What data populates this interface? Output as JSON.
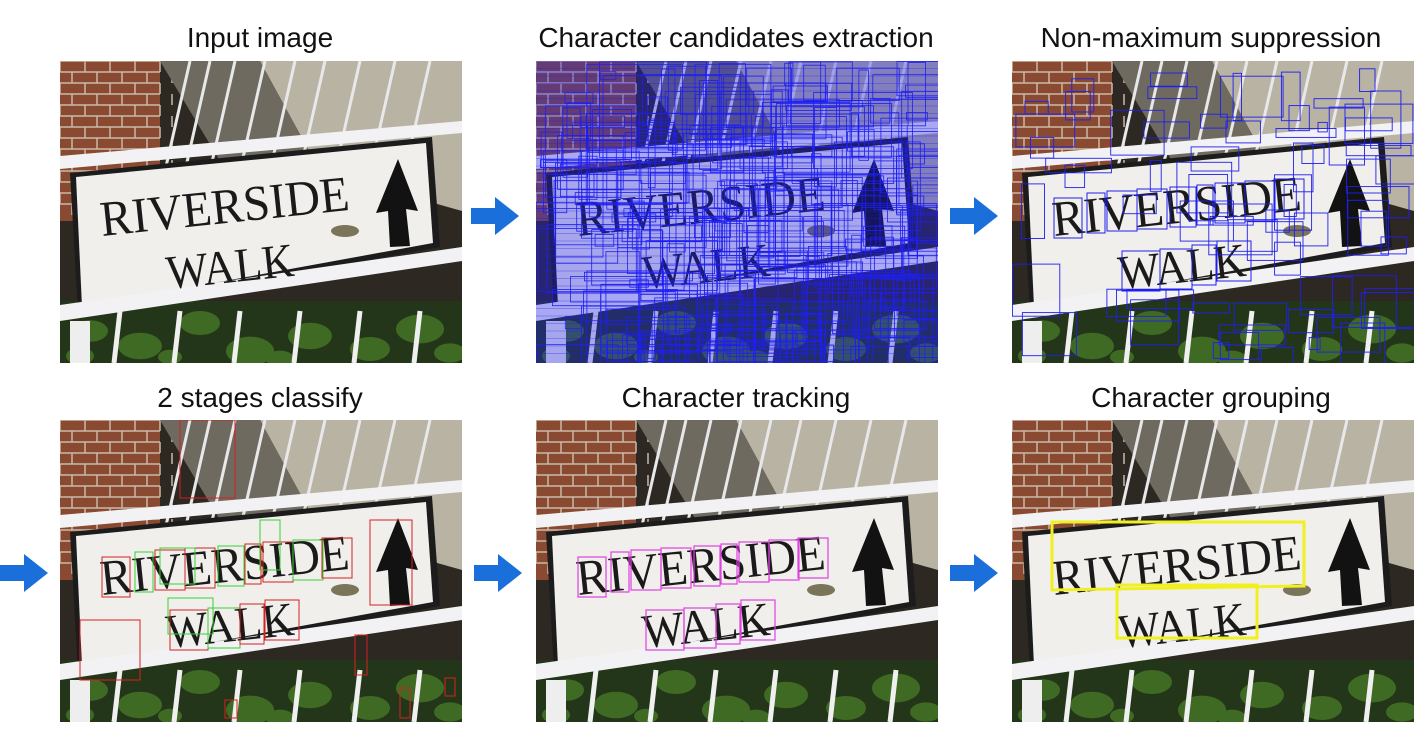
{
  "panels": [
    {
      "id": "input",
      "title": "Input image"
    },
    {
      "id": "candidates",
      "title": "Character candidates extraction"
    },
    {
      "id": "nms",
      "title": "Non-maximum suppression"
    },
    {
      "id": "classify",
      "title": "2 stages classify"
    },
    {
      "id": "tracking",
      "title": "Character tracking"
    },
    {
      "id": "grouping",
      "title": "Character grouping"
    }
  ],
  "sign": {
    "line1": "RIVERSIDE",
    "line2": "WALK"
  },
  "colors": {
    "arrow": "#1a6fdb",
    "candidate_box": "#1f1ff0",
    "rejected_box": "#d42020",
    "accepted_box": "#35d035",
    "tracked_box": "#e040e0",
    "group_box": "#f0f020"
  }
}
